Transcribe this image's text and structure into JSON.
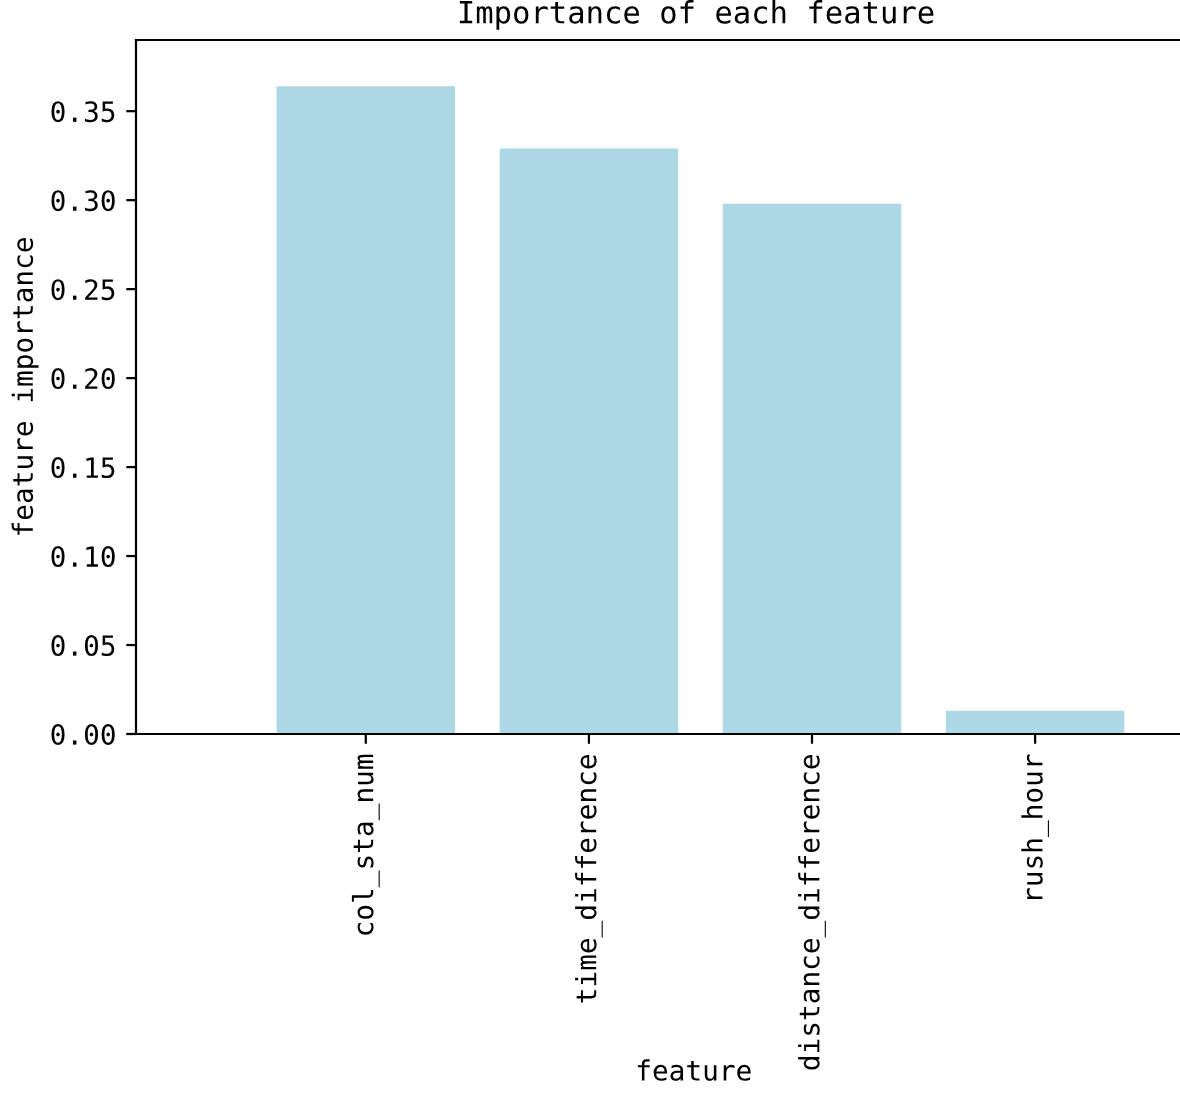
{
  "chart_data": {
    "type": "bar",
    "title": "Importance of each feature",
    "xlabel": "feature",
    "ylabel": "feature importance",
    "categories": [
      "col_sta_num",
      "time_difference",
      "distance_difference",
      "rush_hour"
    ],
    "values": [
      0.364,
      0.329,
      0.298,
      0.013
    ],
    "color": "#add8e6",
    "ylim": [
      0,
      0.39
    ],
    "yticks": [
      {
        "value": 0,
        "label": "0.00"
      },
      {
        "value": 0.05,
        "label": "0.05"
      },
      {
        "value": 0.1,
        "label": "0.10"
      },
      {
        "value": 0.15,
        "label": "0.15"
      },
      {
        "value": 0.2,
        "label": "0.20"
      },
      {
        "value": 0.25,
        "label": "0.25"
      },
      {
        "value": 0.3,
        "label": "0.30"
      },
      {
        "value": 0.35,
        "label": "0.35"
      }
    ],
    "grid": false
  }
}
